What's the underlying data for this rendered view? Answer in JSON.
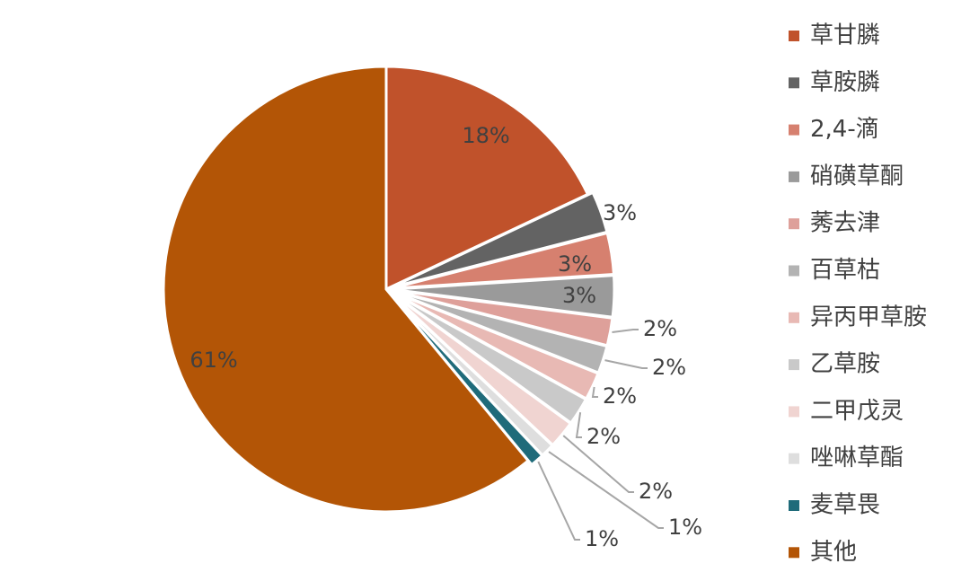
{
  "chart_data": {
    "type": "pie",
    "categories": [
      "草甘膦",
      "草胺膦",
      "2,4-滴",
      "硝磺草酮",
      "莠去津",
      "百草枯",
      "异丙甲草胺",
      "乙草胺",
      "二甲戊灵",
      "唑啉草酯",
      "麦草畏",
      "其他"
    ],
    "values": [
      18,
      3,
      3,
      3,
      2,
      2,
      2,
      2,
      2,
      1,
      1,
      61
    ],
    "value_labels": [
      "18%",
      "3%",
      "3%",
      "3%",
      "2%",
      "2%",
      "2%",
      "2%",
      "2%",
      "1%",
      "1%",
      "61%"
    ],
    "colors": [
      "#c0522b",
      "#636363",
      "#d6806f",
      "#9a9a9a",
      "#dea09a",
      "#b3b3b3",
      "#e8b9b4",
      "#c9c9c9",
      "#f0d4d1",
      "#dedede",
      "#1f6b7a",
      "#b35506"
    ],
    "legend": "right"
  }
}
